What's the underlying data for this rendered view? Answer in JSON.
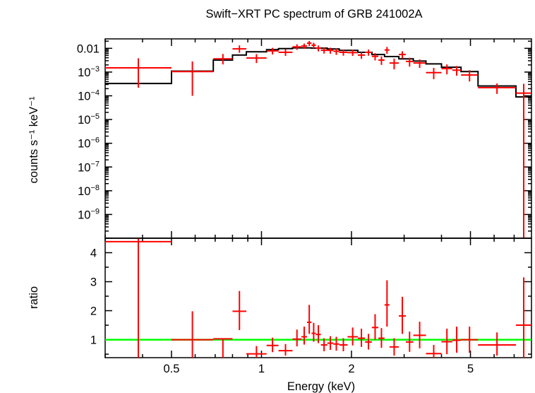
{
  "chart_data": [
    {
      "type": "scatter",
      "panel": "spectrum",
      "title": "Swift−XRT PC spectrum of GRB 241002A",
      "ylabel": "counts s⁻¹ keV⁻¹",
      "xlabel": "",
      "xscale": "log",
      "yscale": "log",
      "xlim": [
        0.3,
        8.0
      ],
      "ylim": [
        1e-10,
        0.025
      ],
      "yticks": [
        {
          "v": 0.01,
          "label": "0.01"
        },
        {
          "v": 0.001,
          "label": "10⁻³"
        },
        {
          "v": 0.0001,
          "label": "10⁻⁴"
        },
        {
          "v": 1e-05,
          "label": "10⁻⁵"
        },
        {
          "v": 1e-06,
          "label": "10⁻⁶"
        },
        {
          "v": 1e-07,
          "label": "10⁻⁷"
        },
        {
          "v": 1e-08,
          "label": "10⁻⁸"
        },
        {
          "v": 1e-09,
          "label": "10⁻⁹"
        }
      ],
      "colors": {
        "data": "#ff0000",
        "model": "#000000"
      },
      "data": [
        {
          "x1": 0.3,
          "x2": 0.5,
          "y": 0.0015,
          "ylo": 0.00022,
          "yhi": 0.0038
        },
        {
          "x1": 0.5,
          "x2": 0.69,
          "y": 0.00105,
          "ylo": 0.0001,
          "yhi": 0.0028
        },
        {
          "x1": 0.69,
          "x2": 0.8,
          "y": 0.0036,
          "ylo": 0.0021,
          "yhi": 0.0058
        },
        {
          "x1": 0.8,
          "x2": 0.89,
          "y": 0.0095,
          "ylo": 0.0065,
          "yhi": 0.0133
        },
        {
          "x1": 0.89,
          "x2": 1.04,
          "y": 0.0039,
          "ylo": 0.0024,
          "yhi": 0.0057
        },
        {
          "x1": 1.04,
          "x2": 1.14,
          "y": 0.0078,
          "ylo": 0.0055,
          "yhi": 0.0105
        },
        {
          "x1": 1.14,
          "x2": 1.27,
          "y": 0.0068,
          "ylo": 0.0048,
          "yhi": 0.0092
        },
        {
          "x1": 1.27,
          "x2": 1.36,
          "y": 0.0115,
          "ylo": 0.0086,
          "yhi": 0.0148
        },
        {
          "x1": 1.36,
          "x2": 1.42,
          "y": 0.0125,
          "ylo": 0.0095,
          "yhi": 0.0158
        },
        {
          "x1": 1.42,
          "x2": 1.47,
          "y": 0.0165,
          "ylo": 0.0125,
          "yhi": 0.0205
        },
        {
          "x1": 1.47,
          "x2": 1.52,
          "y": 0.0135,
          "ylo": 0.01,
          "yhi": 0.0172
        },
        {
          "x1": 1.52,
          "x2": 1.58,
          "y": 0.0102,
          "ylo": 0.0074,
          "yhi": 0.0132
        },
        {
          "x1": 1.58,
          "x2": 1.66,
          "y": 0.0083,
          "ylo": 0.006,
          "yhi": 0.0108
        },
        {
          "x1": 1.66,
          "x2": 1.74,
          "y": 0.0082,
          "ylo": 0.0059,
          "yhi": 0.0106
        },
        {
          "x1": 1.74,
          "x2": 1.82,
          "y": 0.0075,
          "ylo": 0.0053,
          "yhi": 0.0098
        },
        {
          "x1": 1.82,
          "x2": 1.94,
          "y": 0.0068,
          "ylo": 0.0049,
          "yhi": 0.0089
        },
        {
          "x1": 1.94,
          "x2": 2.1,
          "y": 0.0066,
          "ylo": 0.0048,
          "yhi": 0.0086
        },
        {
          "x1": 2.1,
          "x2": 2.22,
          "y": 0.0052,
          "ylo": 0.0036,
          "yhi": 0.007
        },
        {
          "x1": 2.22,
          "x2": 2.34,
          "y": 0.0068,
          "ylo": 0.0049,
          "yhi": 0.0089
        },
        {
          "x1": 2.34,
          "x2": 2.46,
          "y": 0.0046,
          "ylo": 0.0031,
          "yhi": 0.0063
        },
        {
          "x1": 2.46,
          "x2": 2.58,
          "y": 0.0032,
          "ylo": 0.002,
          "yhi": 0.0046
        },
        {
          "x1": 2.58,
          "x2": 2.68,
          "y": 0.0085,
          "ylo": 0.0058,
          "yhi": 0.0114
        },
        {
          "x1": 2.68,
          "x2": 2.88,
          "y": 0.0024,
          "ylo": 0.0013,
          "yhi": 0.0037
        },
        {
          "x1": 2.88,
          "x2": 3.04,
          "y": 0.0055,
          "ylo": 0.0037,
          "yhi": 0.0075
        },
        {
          "x1": 3.04,
          "x2": 3.22,
          "y": 0.0028,
          "ylo": 0.0017,
          "yhi": 0.004
        },
        {
          "x1": 3.22,
          "x2": 3.55,
          "y": 0.0024,
          "ylo": 0.0015,
          "yhi": 0.0034
        },
        {
          "x1": 3.55,
          "x2": 4.0,
          "y": 0.00095,
          "ylo": 0.0005,
          "yhi": 0.0015
        },
        {
          "x1": 4.0,
          "x2": 4.35,
          "y": 0.0014,
          "ylo": 0.0008,
          "yhi": 0.0021
        },
        {
          "x1": 4.35,
          "x2": 4.65,
          "y": 0.0012,
          "ylo": 0.0007,
          "yhi": 0.0018
        },
        {
          "x1": 4.65,
          "x2": 5.3,
          "y": 0.00075,
          "ylo": 0.0004,
          "yhi": 0.0012
        },
        {
          "x1": 5.3,
          "x2": 7.1,
          "y": 0.00022,
          "ylo": 0.00012,
          "yhi": 0.00033
        },
        {
          "x1": 7.1,
          "x2": 8.0,
          "y": 0.00013,
          "ylo": 1e-10,
          "yhi": 0.00032
        }
      ],
      "model": [
        {
          "x1": 0.3,
          "x2": 0.5,
          "y": 0.00033
        },
        {
          "x1": 0.5,
          "x2": 0.69,
          "y": 0.0011
        },
        {
          "x1": 0.69,
          "x2": 0.8,
          "y": 0.0032
        },
        {
          "x1": 0.8,
          "x2": 0.89,
          "y": 0.0052
        },
        {
          "x1": 0.89,
          "x2": 1.04,
          "y": 0.0072
        },
        {
          "x1": 1.04,
          "x2": 1.14,
          "y": 0.0088
        },
        {
          "x1": 1.14,
          "x2": 1.27,
          "y": 0.0098
        },
        {
          "x1": 1.27,
          "x2": 1.47,
          "y": 0.0105
        },
        {
          "x1": 1.47,
          "x2": 1.66,
          "y": 0.0102
        },
        {
          "x1": 1.66,
          "x2": 1.82,
          "y": 0.0094
        },
        {
          "x1": 1.82,
          "x2": 2.1,
          "y": 0.0082
        },
        {
          "x1": 2.1,
          "x2": 2.34,
          "y": 0.0068
        },
        {
          "x1": 2.34,
          "x2": 2.58,
          "y": 0.0055
        },
        {
          "x1": 2.58,
          "x2": 2.88,
          "y": 0.0045
        },
        {
          "x1": 2.88,
          "x2": 3.22,
          "y": 0.0036
        },
        {
          "x1": 3.22,
          "x2": 3.55,
          "y": 0.0029
        },
        {
          "x1": 3.55,
          "x2": 4.0,
          "y": 0.0022
        },
        {
          "x1": 4.0,
          "x2": 4.65,
          "y": 0.0016
        },
        {
          "x1": 4.65,
          "x2": 5.3,
          "y": 0.00105
        },
        {
          "x1": 5.3,
          "x2": 7.1,
          "y": 0.00026
        },
        {
          "x1": 7.1,
          "x2": 7.7,
          "y": 9e-05
        },
        {
          "x1": 7.7,
          "x2": 8.0,
          "y": 9e-05
        }
      ]
    },
    {
      "type": "scatter",
      "panel": "ratio",
      "xlabel": "Energy (keV)",
      "ylabel": "ratio",
      "xscale": "log",
      "yscale": "linear",
      "xlim": [
        0.3,
        8.0
      ],
      "ylim": [
        0.38,
        4.5
      ],
      "xticks": [
        {
          "v": 0.5,
          "label": "0.5"
        },
        {
          "v": 1,
          "label": "1"
        },
        {
          "v": 2,
          "label": "2"
        },
        {
          "v": 5,
          "label": "5"
        }
      ],
      "yticks": [
        {
          "v": 1,
          "label": "1"
        },
        {
          "v": 2,
          "label": "2"
        },
        {
          "v": 3,
          "label": "3"
        },
        {
          "v": 4,
          "label": "4"
        }
      ],
      "reference_line": 1,
      "colors": {
        "data": "#ff0000",
        "reference": "#00ff00"
      },
      "data": [
        {
          "x1": 0.3,
          "x2": 0.5,
          "y": 4.38,
          "ylo": 0.38,
          "yhi": 4.5
        },
        {
          "x1": 0.5,
          "x2": 0.69,
          "y": 1.0,
          "ylo": 0.38,
          "yhi": 1.98
        },
        {
          "x1": 0.69,
          "x2": 0.8,
          "y": 1.03,
          "ylo": 0.38,
          "yhi": 1.05
        },
        {
          "x1": 0.8,
          "x2": 0.89,
          "y": 1.98,
          "ylo": 1.33,
          "yhi": 2.68
        },
        {
          "x1": 0.89,
          "x2": 1.04,
          "y": 0.51,
          "ylo": 0.38,
          "yhi": 0.78
        },
        {
          "x1": 1.04,
          "x2": 1.14,
          "y": 0.8,
          "ylo": 0.57,
          "yhi": 1.07
        },
        {
          "x1": 1.14,
          "x2": 1.27,
          "y": 0.62,
          "ylo": 0.45,
          "yhi": 0.85
        },
        {
          "x1": 1.27,
          "x2": 1.36,
          "y": 1.02,
          "ylo": 0.77,
          "yhi": 1.35
        },
        {
          "x1": 1.36,
          "x2": 1.42,
          "y": 1.1,
          "ylo": 0.83,
          "yhi": 1.45
        },
        {
          "x1": 1.42,
          "x2": 1.47,
          "y": 1.6,
          "ylo": 1.2,
          "yhi": 2.2
        },
        {
          "x1": 1.47,
          "x2": 1.52,
          "y": 1.22,
          "ylo": 0.93,
          "yhi": 1.58
        },
        {
          "x1": 1.52,
          "x2": 1.58,
          "y": 1.18,
          "ylo": 0.88,
          "yhi": 1.5
        },
        {
          "x1": 1.58,
          "x2": 1.66,
          "y": 0.82,
          "ylo": 0.6,
          "yhi": 1.05
        },
        {
          "x1": 1.66,
          "x2": 1.74,
          "y": 0.88,
          "ylo": 0.65,
          "yhi": 1.12
        },
        {
          "x1": 1.74,
          "x2": 1.82,
          "y": 0.85,
          "ylo": 0.62,
          "yhi": 1.1
        },
        {
          "x1": 1.82,
          "x2": 1.94,
          "y": 0.82,
          "ylo": 0.6,
          "yhi": 1.05
        },
        {
          "x1": 1.94,
          "x2": 2.1,
          "y": 1.1,
          "ylo": 0.8,
          "yhi": 1.42
        },
        {
          "x1": 2.1,
          "x2": 2.22,
          "y": 1.05,
          "ylo": 0.75,
          "yhi": 1.38
        },
        {
          "x1": 2.22,
          "x2": 2.34,
          "y": 0.92,
          "ylo": 0.66,
          "yhi": 1.2
        },
        {
          "x1": 2.34,
          "x2": 2.46,
          "y": 1.42,
          "ylo": 1.0,
          "yhi": 1.88
        },
        {
          "x1": 2.46,
          "x2": 2.58,
          "y": 1.05,
          "ylo": 0.72,
          "yhi": 1.4
        },
        {
          "x1": 2.58,
          "x2": 2.68,
          "y": 2.2,
          "ylo": 1.45,
          "yhi": 3.05
        },
        {
          "x1": 2.68,
          "x2": 2.88,
          "y": 0.75,
          "ylo": 0.45,
          "yhi": 1.05
        },
        {
          "x1": 2.88,
          "x2": 3.04,
          "y": 1.82,
          "ylo": 1.2,
          "yhi": 2.48
        },
        {
          "x1": 3.04,
          "x2": 3.22,
          "y": 0.92,
          "ylo": 0.58,
          "yhi": 1.28
        },
        {
          "x1": 3.22,
          "x2": 3.55,
          "y": 1.15,
          "ylo": 0.7,
          "yhi": 1.62
        },
        {
          "x1": 3.55,
          "x2": 4.0,
          "y": 0.52,
          "ylo": 0.38,
          "yhi": 0.82
        },
        {
          "x1": 4.0,
          "x2": 4.35,
          "y": 0.93,
          "ylo": 0.5,
          "yhi": 1.38
        },
        {
          "x1": 4.35,
          "x2": 4.65,
          "y": 0.98,
          "ylo": 0.55,
          "yhi": 1.45
        },
        {
          "x1": 4.65,
          "x2": 5.3,
          "y": 1.0,
          "ylo": 0.55,
          "yhi": 1.45
        },
        {
          "x1": 5.3,
          "x2": 7.1,
          "y": 0.82,
          "ylo": 0.45,
          "yhi": 1.25
        },
        {
          "x1": 7.1,
          "x2": 8.0,
          "y": 1.5,
          "ylo": 0.38,
          "yhi": 3.15
        }
      ]
    }
  ]
}
